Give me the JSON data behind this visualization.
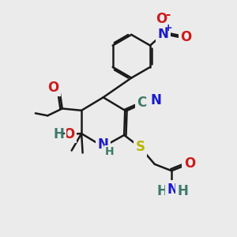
{
  "bg_color": "#ebebeb",
  "bond_color": "#1a1a1a",
  "colors": {
    "C": "#3d7a6a",
    "N": "#1a1acc",
    "O": "#cc1a1a",
    "S": "#b8b800",
    "H": "#3d7a6a"
  },
  "lw": 1.8
}
